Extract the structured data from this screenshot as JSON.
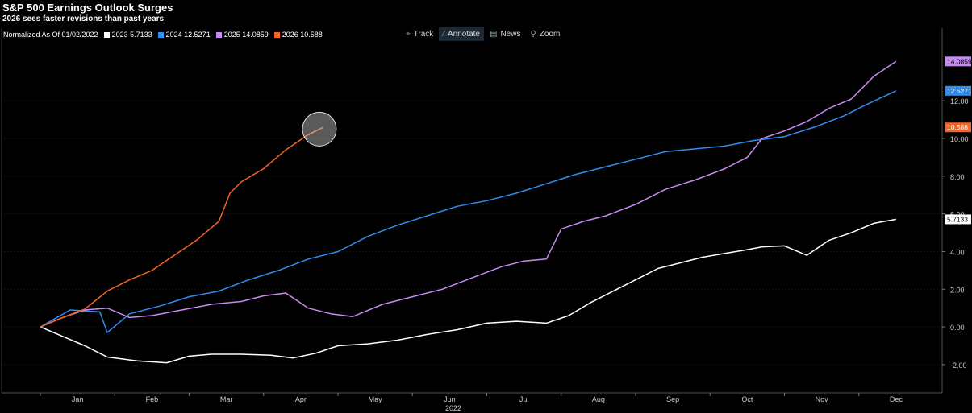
{
  "header": {
    "title": "S&P 500 Earnings Outlook Surges",
    "subtitle": "2026 sees faster revisions than past years"
  },
  "legend": {
    "normalized_label": "Normalized As Of 01/02/2022",
    "items": [
      {
        "label": "2023 5.7133",
        "color": "#ffffff"
      },
      {
        "label": "2024 12.5271",
        "color": "#2f8ef2"
      },
      {
        "label": "2025 14.0859",
        "color": "#c78af5"
      },
      {
        "label": "2026 10.588",
        "color": "#f26522"
      }
    ]
  },
  "toolbar": {
    "track": "Track",
    "annotate": "Annotate",
    "news": "News",
    "zoom": "Zoom"
  },
  "chart_data": {
    "type": "line",
    "title": "S&P 500 Earnings Outlook Surges",
    "subtitle": "2026 sees faster revisions than past years",
    "xlabel": "2022",
    "ylabel": "",
    "x_ticks": [
      "Jan",
      "Feb",
      "Mar",
      "Apr",
      "May",
      "Jun",
      "Jul",
      "Aug",
      "Sep",
      "Oct",
      "Nov",
      "Dec"
    ],
    "y_ticks": [
      "-2.00",
      "0.00",
      "2.00",
      "4.00",
      "6.00",
      "8.00",
      "10.00",
      "12.00"
    ],
    "ylim": [
      -3.5,
      15
    ],
    "xlim": [
      0,
      12
    ],
    "grid": true,
    "legend_position": "top-left",
    "series": [
      {
        "name": "2023",
        "last": "5.7133",
        "color": "#ffffff",
        "x": [
          0,
          0.3,
          0.6,
          0.9,
          1.3,
          1.7,
          2.0,
          2.3,
          2.7,
          3.1,
          3.4,
          3.7,
          4.0,
          4.4,
          4.8,
          5.2,
          5.6,
          6.0,
          6.4,
          6.8,
          7.1,
          7.4,
          7.7,
          8.0,
          8.3,
          8.6,
          8.9,
          9.2,
          9.5,
          9.7,
          10.0,
          10.3,
          10.6,
          10.9,
          11.2,
          11.5
        ],
        "y": [
          0,
          -0.5,
          -1.0,
          -1.6,
          -1.8,
          -1.9,
          -1.55,
          -1.45,
          -1.45,
          -1.5,
          -1.65,
          -1.4,
          -1.0,
          -0.9,
          -0.7,
          -0.4,
          -0.15,
          0.2,
          0.3,
          0.2,
          0.6,
          1.3,
          1.9,
          2.5,
          3.1,
          3.4,
          3.7,
          3.9,
          4.1,
          4.25,
          4.3,
          3.8,
          4.6,
          5.0,
          5.5,
          5.71
        ]
      },
      {
        "name": "2024",
        "last": "12.5271",
        "color": "#2f8ef2",
        "x": [
          0,
          0.4,
          0.8,
          0.9,
          1.2,
          1.6,
          2.0,
          2.4,
          2.8,
          3.2,
          3.6,
          4.0,
          4.4,
          4.8,
          5.2,
          5.6,
          6.0,
          6.4,
          6.8,
          7.2,
          7.6,
          8.0,
          8.4,
          8.8,
          9.2,
          9.6,
          10.0,
          10.4,
          10.8,
          11.1,
          11.5
        ],
        "y": [
          0,
          0.9,
          0.8,
          -0.3,
          0.7,
          1.1,
          1.6,
          1.9,
          2.5,
          3.0,
          3.6,
          4.0,
          4.8,
          5.4,
          5.9,
          6.4,
          6.7,
          7.1,
          7.6,
          8.1,
          8.5,
          8.9,
          9.3,
          9.45,
          9.6,
          9.9,
          10.1,
          10.6,
          11.2,
          11.8,
          12.53
        ]
      },
      {
        "name": "2025",
        "last": "14.0859",
        "color": "#c78af5",
        "x": [
          0,
          0.3,
          0.6,
          0.9,
          1.2,
          1.5,
          1.9,
          2.3,
          2.7,
          3.0,
          3.3,
          3.6,
          3.9,
          4.2,
          4.6,
          5.0,
          5.4,
          5.8,
          6.2,
          6.5,
          6.8,
          7.0,
          7.3,
          7.6,
          8.0,
          8.4,
          8.8,
          9.2,
          9.5,
          9.7,
          10.0,
          10.3,
          10.6,
          10.9,
          11.2,
          11.5
        ],
        "y": [
          0,
          0.5,
          0.9,
          1.0,
          0.5,
          0.6,
          0.9,
          1.2,
          1.35,
          1.65,
          1.8,
          1.0,
          0.7,
          0.55,
          1.2,
          1.6,
          2.0,
          2.6,
          3.2,
          3.5,
          3.6,
          5.2,
          5.6,
          5.9,
          6.5,
          7.3,
          7.8,
          8.4,
          9.0,
          10.0,
          10.4,
          10.9,
          11.6,
          12.1,
          13.3,
          14.09
        ]
      },
      {
        "name": "2026",
        "last": "10.588",
        "color": "#f26522",
        "x": [
          0,
          0.3,
          0.6,
          0.9,
          1.2,
          1.5,
          1.8,
          2.1,
          2.4,
          2.55,
          2.7,
          3.0,
          3.3,
          3.6,
          3.8
        ],
        "y": [
          0,
          0.5,
          0.95,
          1.9,
          2.5,
          3.0,
          3.8,
          4.6,
          5.6,
          7.1,
          7.7,
          8.4,
          9.4,
          10.2,
          10.59
        ]
      }
    ],
    "annotation": {
      "type": "circle",
      "x": 3.75,
      "y": 10.5
    }
  }
}
